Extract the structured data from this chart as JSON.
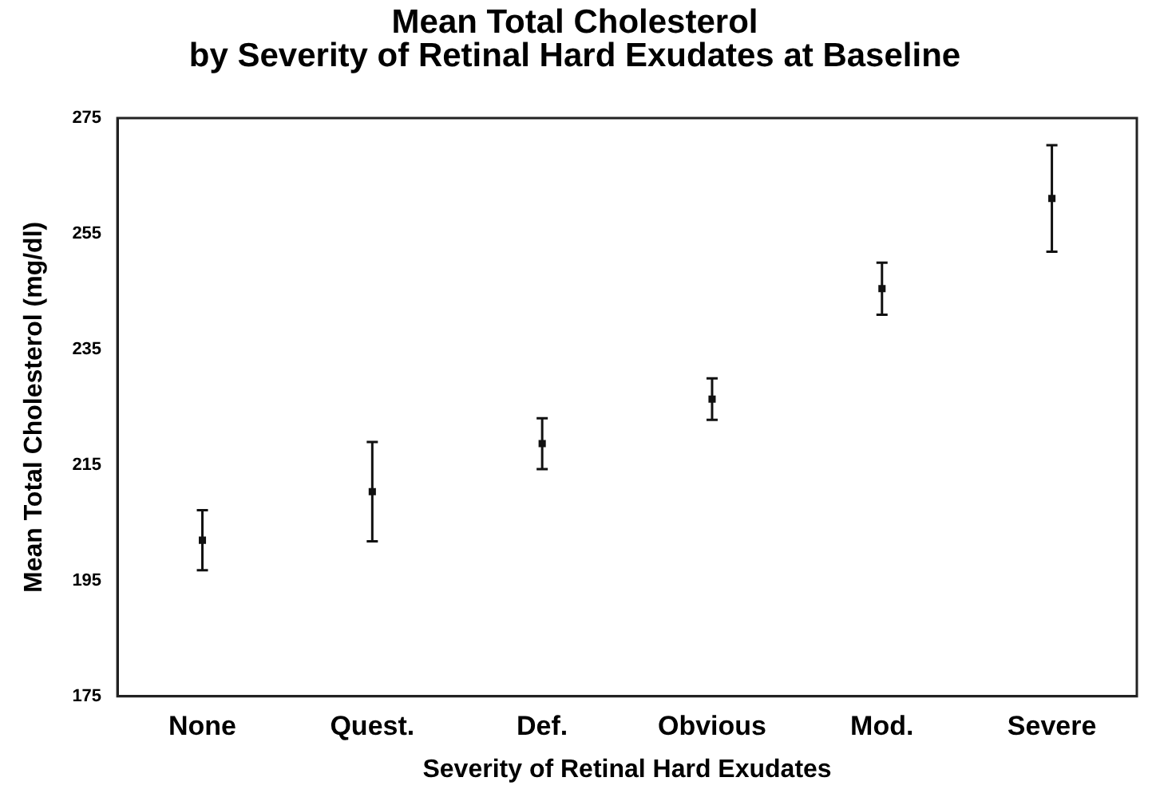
{
  "chart_data": {
    "type": "scatter",
    "title": "Mean Total Cholesterol\nby Severity of Retinal Hard Exudates at Baseline",
    "xlabel": "Severity of Retinal Hard Exudates",
    "ylabel": "Mean Total Cholesterol (mg/dl)",
    "categories": [
      "None",
      "Quest.",
      "Def.",
      "Obvious",
      "Mod.",
      "Severe"
    ],
    "values": [
      202,
      210.4,
      218.7,
      226.4,
      245.5,
      261.1
    ],
    "errors": [
      5.2,
      8.6,
      4.4,
      3.6,
      4.5,
      9.2
    ],
    "color": "#111111",
    "marker": "square",
    "grid": false,
    "legend": false,
    "ylim": [
      175,
      275
    ],
    "yticks": [
      175,
      195,
      215,
      235,
      255,
      275
    ]
  }
}
